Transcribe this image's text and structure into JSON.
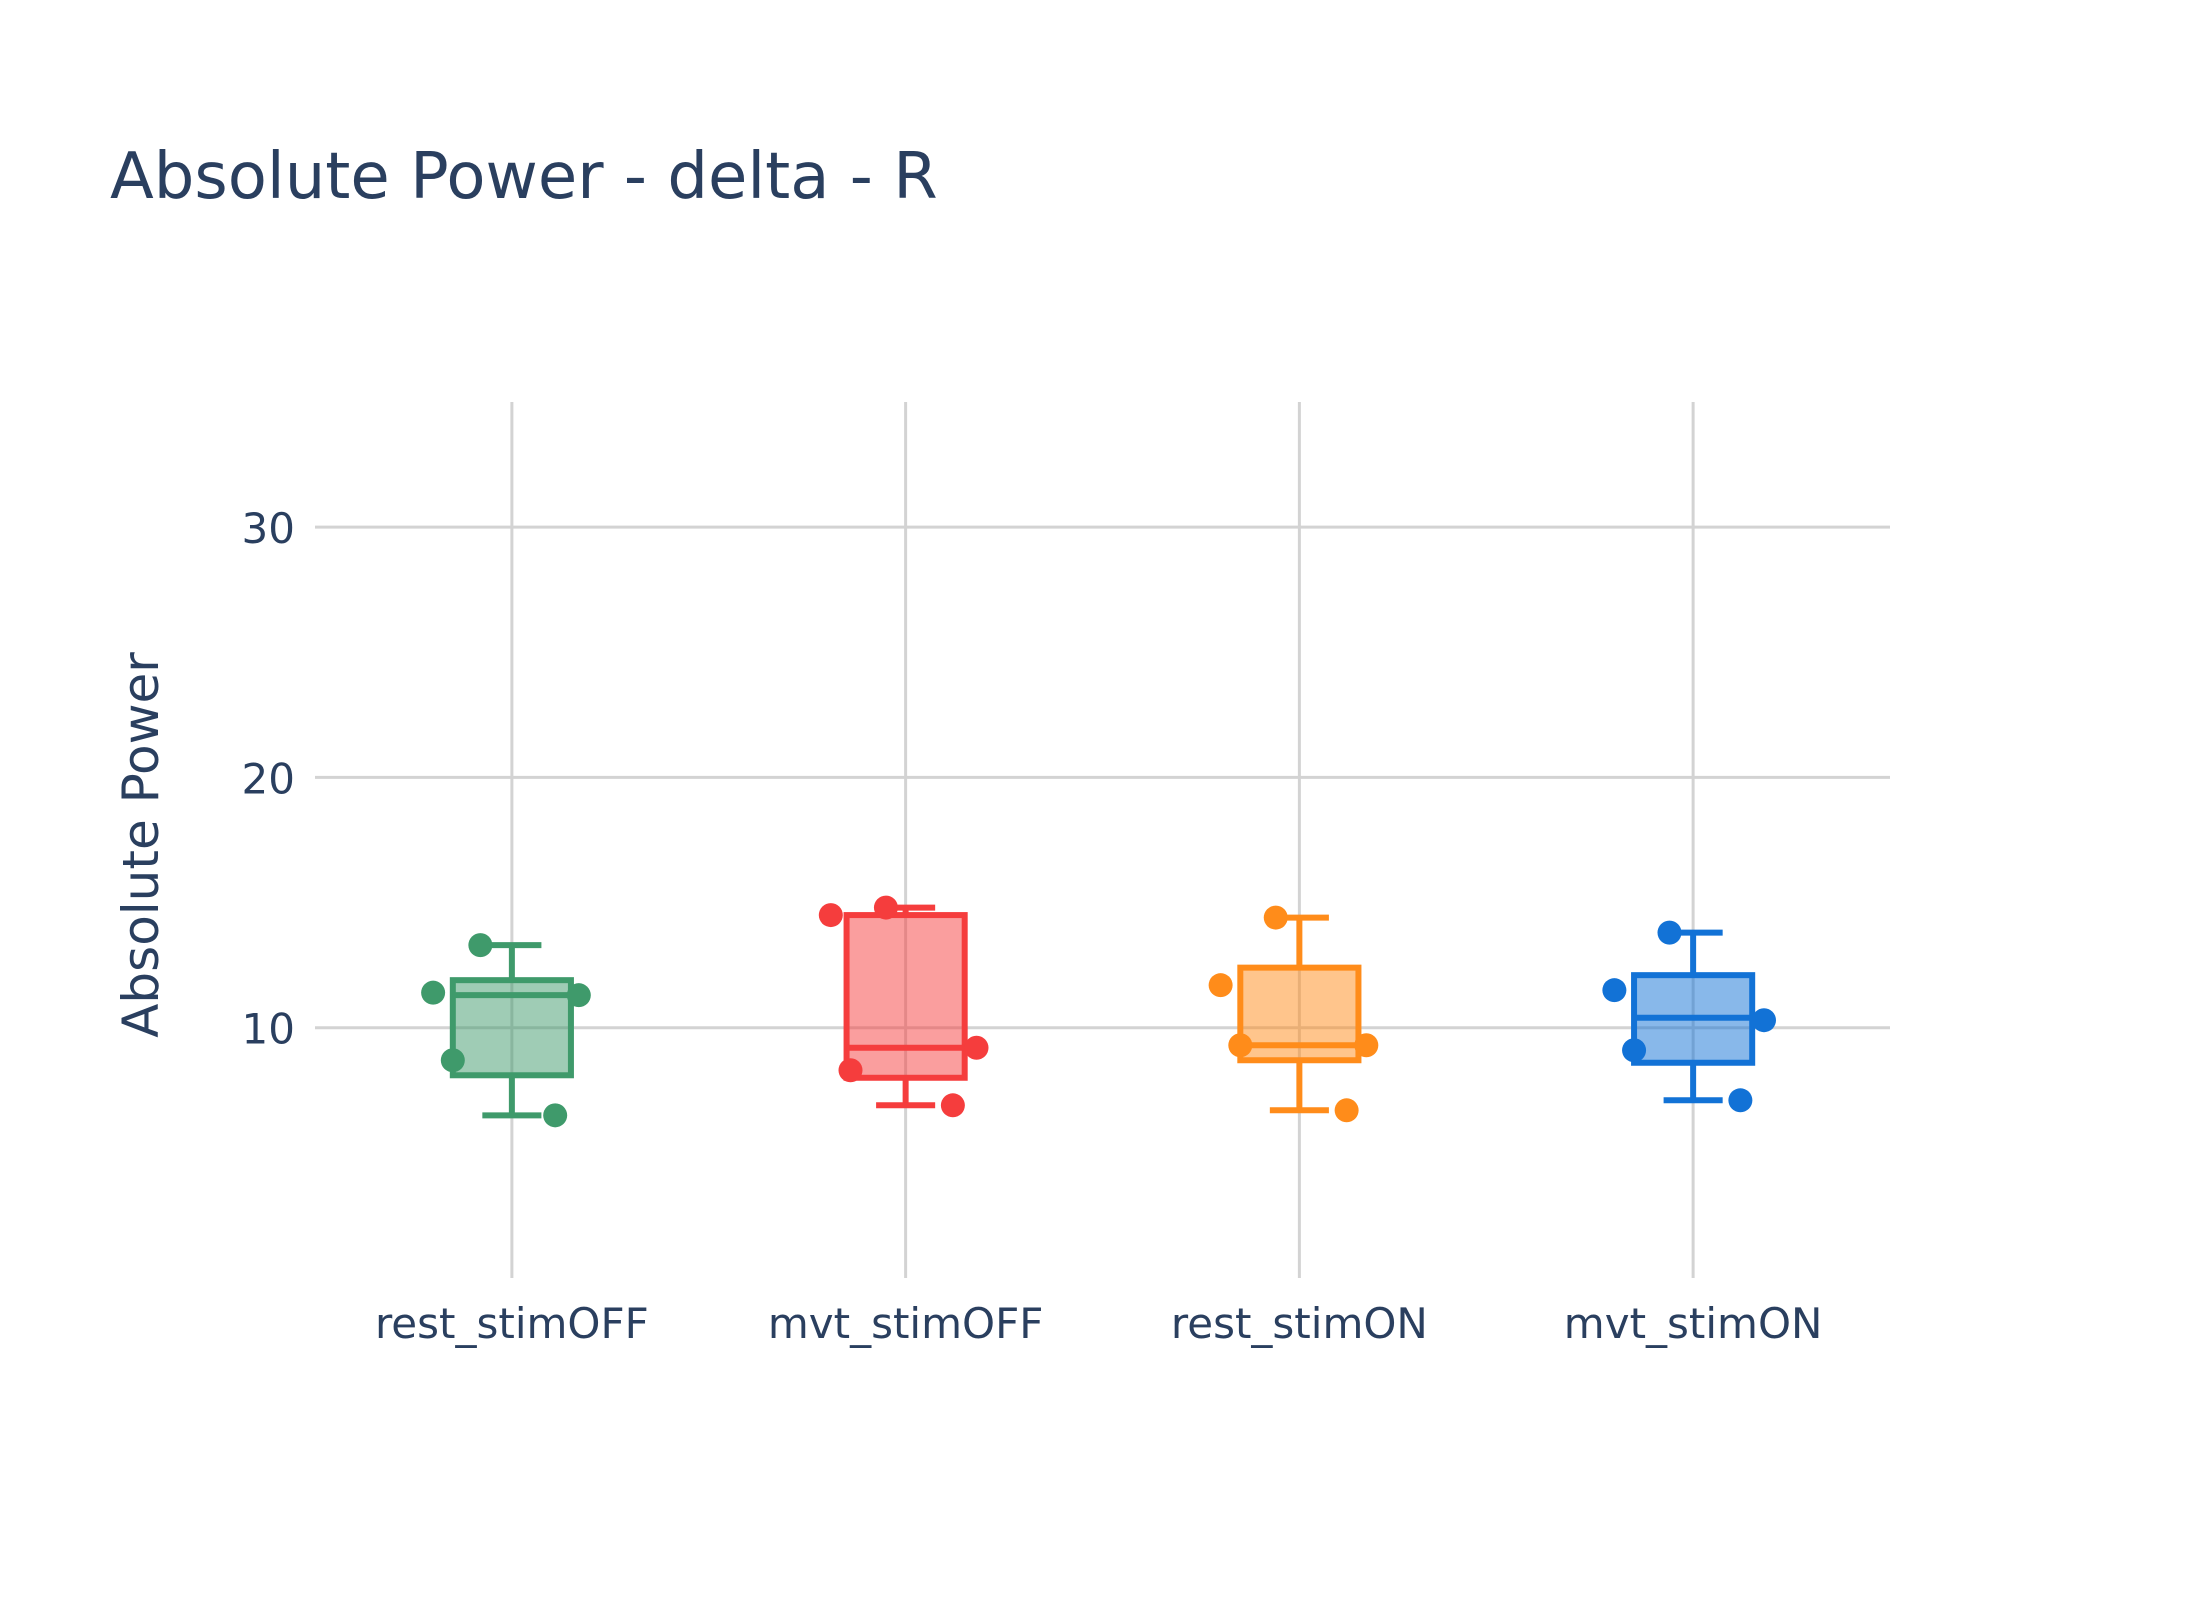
{
  "chart_data": {
    "type": "box",
    "title": "Absolute Power - delta - R",
    "xlabel": "",
    "ylabel": "Absolute Power",
    "ylim": [
      0,
      35
    ],
    "yticks": [
      10,
      20,
      30
    ],
    "grid": true,
    "categories": [
      "rest_stimOFF",
      "mvt_stimOFF",
      "rest_stimON",
      "mvt_stimON"
    ],
    "series": [
      {
        "category": "rest_stimOFF",
        "color": "#3f9a6b",
        "fill": "rgba(63,154,107,0.5)",
        "whisker_low": 6.5,
        "q1": 8.1,
        "median": 11.3,
        "q3": 11.9,
        "whisker_high": 13.3,
        "points": [
          {
            "y": 13.3,
            "dx": -0.08
          },
          {
            "y": 11.4,
            "dx": -0.2
          },
          {
            "y": 11.3,
            "dx": 0.17
          },
          {
            "y": 8.7,
            "dx": -0.15
          },
          {
            "y": 6.5,
            "dx": 0.11
          }
        ]
      },
      {
        "category": "mvt_stimOFF",
        "color": "#f53d3d",
        "fill": "rgba(245,61,61,0.5)",
        "whisker_low": 6.9,
        "q1": 8.0,
        "median": 9.2,
        "q3": 14.5,
        "whisker_high": 14.8,
        "points": [
          {
            "y": 14.8,
            "dx": -0.05
          },
          {
            "y": 14.5,
            "dx": -0.19
          },
          {
            "y": 9.2,
            "dx": 0.18
          },
          {
            "y": 8.3,
            "dx": -0.14
          },
          {
            "y": 6.9,
            "dx": 0.12
          }
        ]
      },
      {
        "category": "rest_stimON",
        "color": "#ff8c1a",
        "fill": "rgba(255,140,26,0.5)",
        "whisker_low": 6.7,
        "q1": 8.7,
        "median": 9.3,
        "q3": 12.4,
        "whisker_high": 14.4,
        "points": [
          {
            "y": 14.4,
            "dx": -0.06
          },
          {
            "y": 11.7,
            "dx": -0.2
          },
          {
            "y": 9.3,
            "dx": -0.15
          },
          {
            "y": 9.3,
            "dx": 0.17
          },
          {
            "y": 6.7,
            "dx": 0.12
          }
        ]
      },
      {
        "category": "mvt_stimON",
        "color": "#1272d6",
        "fill": "rgba(18,114,214,0.5)",
        "whisker_low": 7.1,
        "q1": 8.6,
        "median": 10.4,
        "q3": 12.1,
        "whisker_high": 13.8,
        "points": [
          {
            "y": 13.8,
            "dx": -0.06
          },
          {
            "y": 11.5,
            "dx": -0.2
          },
          {
            "y": 10.3,
            "dx": 0.18
          },
          {
            "y": 9.1,
            "dx": -0.15
          },
          {
            "y": 7.1,
            "dx": 0.12
          }
        ]
      }
    ]
  }
}
